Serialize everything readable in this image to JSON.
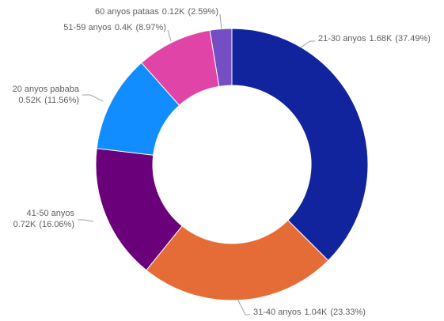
{
  "chart_data": {
    "type": "donut",
    "categories": [
      "21-30 anyos",
      "31-40 anyos",
      "41-50 anyos",
      "20 anyos pababa",
      "51-59 anyos",
      "60 anyos pataas"
    ],
    "values": [
      1680,
      1040,
      720,
      520,
      400,
      120
    ],
    "value_labels": [
      "1.68K",
      "1.04K",
      "0.72K",
      "0.52K",
      "0.4K",
      "0.12K"
    ],
    "percentages": [
      37.49,
      23.33,
      16.06,
      11.56,
      8.97,
      2.59
    ],
    "percentage_labels": [
      "(37.49%)",
      "(23.33%)",
      "(16.06%)",
      "(11.56%)",
      "(8.97%)",
      "(2.59%)"
    ],
    "colors": [
      "#12239e",
      "#e66c37",
      "#6b007b",
      "#118dff",
      "#e044a7",
      "#744ec2"
    ]
  }
}
